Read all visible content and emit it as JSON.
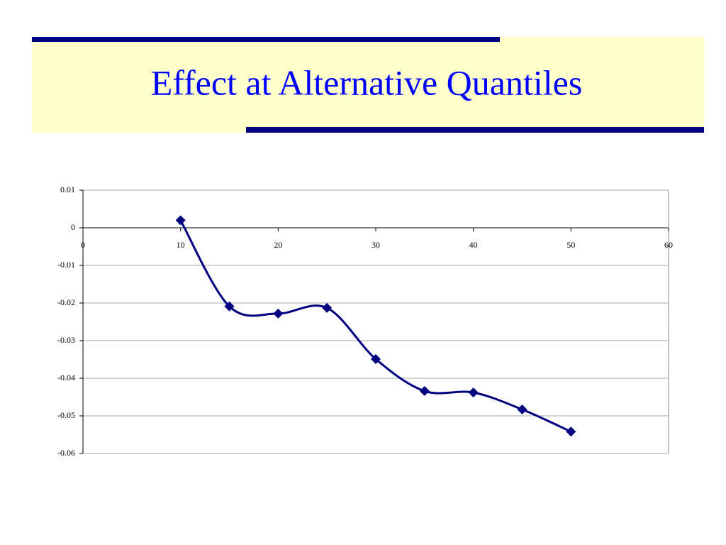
{
  "chart_data": {
    "type": "line",
    "title": "Effect at Alternative Quantiles",
    "x": [
      10,
      15,
      20,
      25,
      30,
      35,
      40,
      45,
      50
    ],
    "values": [
      0.002,
      -0.0209,
      -0.0228,
      -0.0213,
      -0.0349,
      -0.0434,
      -0.0438,
      -0.0483,
      -0.0542
    ],
    "color": "#000080",
    "xlim": [
      0,
      60
    ],
    "xticks": [
      0,
      10,
      20,
      30,
      40,
      50,
      60
    ],
    "ylim": [
      -0.06,
      0.01
    ],
    "yticks": [
      -0.06,
      -0.05,
      -0.04,
      -0.03,
      -0.02,
      -0.01,
      0,
      0.01
    ],
    "grid": true,
    "smooth": true,
    "marker": "diamond"
  }
}
